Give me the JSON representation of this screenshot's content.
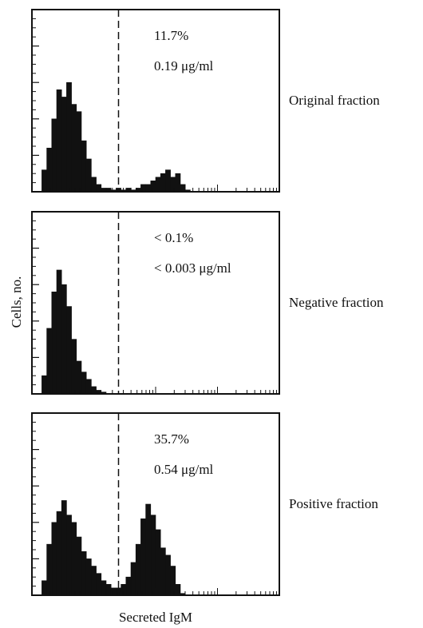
{
  "chart_data": [
    {
      "type": "histogram",
      "label": "Original fraction",
      "annotations": [
        "11.7%",
        "0.19 μg/ml"
      ],
      "bins": [
        0,
        2,
        4,
        6,
        8,
        10,
        12,
        14,
        16,
        18,
        20,
        22,
        24,
        26,
        28,
        30,
        32,
        34,
        36,
        38,
        40,
        42,
        44,
        46,
        48,
        50,
        52,
        54,
        56,
        58,
        60,
        62,
        64,
        66,
        68,
        70
      ],
      "counts": [
        0,
        0,
        0.6,
        1.2,
        2.0,
        2.8,
        2.6,
        3.0,
        2.4,
        2.2,
        1.4,
        0.9,
        0.4,
        0.2,
        0.1,
        0.1,
        0.05,
        0.1,
        0.05,
        0.1,
        0.05,
        0.1,
        0.2,
        0.2,
        0.3,
        0.4,
        0.5,
        0.6,
        0.4,
        0.5,
        0.2,
        0.05,
        0,
        0,
        0
      ],
      "gate": 35,
      "xlim": [
        0,
        100
      ],
      "ylim": [
        0,
        5
      ],
      "color": "#111111"
    },
    {
      "type": "histogram",
      "label": "Negative fraction",
      "annotations": [
        "< 0.1%",
        "< 0.003 μg/ml"
      ],
      "bins": [
        0,
        2,
        4,
        6,
        8,
        10,
        12,
        14,
        16,
        18,
        20,
        22,
        24,
        26,
        28,
        30,
        32,
        34,
        36,
        38,
        40,
        42,
        44,
        46,
        48,
        50,
        52,
        54,
        56,
        58,
        60,
        62,
        64,
        66,
        68,
        70
      ],
      "counts": [
        0,
        0,
        0.5,
        1.8,
        2.8,
        3.4,
        3.0,
        2.4,
        1.5,
        0.9,
        0.6,
        0.4,
        0.2,
        0.1,
        0.05,
        0,
        0,
        0,
        0,
        0,
        0,
        0,
        0,
        0,
        0,
        0,
        0,
        0,
        0,
        0,
        0,
        0,
        0,
        0,
        0
      ],
      "gate": 35,
      "xlim": [
        0,
        100
      ],
      "ylim": [
        0,
        5
      ],
      "color": "#111111"
    },
    {
      "type": "histogram",
      "label": "Positive fraction",
      "annotations": [
        "35.7%",
        "0.54 μg/ml"
      ],
      "bins": [
        0,
        2,
        4,
        6,
        8,
        10,
        12,
        14,
        16,
        18,
        20,
        22,
        24,
        26,
        28,
        30,
        32,
        34,
        36,
        38,
        40,
        42,
        44,
        46,
        48,
        50,
        52,
        54,
        56,
        58,
        60,
        62,
        64,
        66,
        68,
        70
      ],
      "counts": [
        0,
        0,
        0.4,
        1.4,
        2.0,
        2.3,
        2.6,
        2.2,
        2.0,
        1.6,
        1.2,
        1.0,
        0.8,
        0.6,
        0.4,
        0.3,
        0.2,
        0.2,
        0.3,
        0.5,
        0.9,
        1.4,
        2.1,
        2.5,
        2.2,
        1.8,
        1.3,
        1.1,
        0.8,
        0.3,
        0.05,
        0,
        0,
        0,
        0
      ],
      "gate": 35,
      "xlim": [
        0,
        100
      ],
      "ylim": [
        0,
        5
      ],
      "color": "#111111"
    }
  ],
  "shared": {
    "ylabel": "Cells, no.",
    "xlabel": "Secreted IgM"
  }
}
